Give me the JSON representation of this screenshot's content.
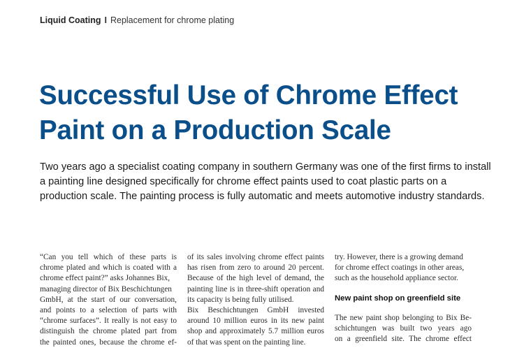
{
  "header": {
    "section": "Liquid Coating",
    "separator": "I",
    "topic": "Replacement for chrome plating"
  },
  "title": {
    "lines": [
      "Successful Use of Chrome Effect",
      "Paint on a Production Scale"
    ]
  },
  "lead": {
    "lines": [
      "Two years ago a specialist coating company in southern Germany was one of the first firms to install",
      "a painting line designed specifically for chrome effect paints used to coat plastic parts on a",
      "production scale. The painting process is fully automatic and meets automotive industry standards."
    ]
  },
  "columns": {
    "col1": [
      "“Can you tell which of these parts is",
      "chrome plated and which is coated with a",
      "chrome effect paint?” asks Johannes Bix,",
      "managing director of Bix Beschichtungen",
      "GmbH, at the start of our conversation,",
      "and points to a selection of parts with",
      "“chrome surfaces”. It really is not easy to",
      "distinguish the chrome plated part from",
      "the painted ones, because the chrome ef-"
    ],
    "col2": [
      "of its sales involving chrome effect paints",
      "has risen from zero to around 20 percent.",
      "Because of the high level of demand, the",
      "painting line is in three-shift operation and",
      "its capacity is being fully utilised.",
      "Bix Beschichtungen GmbH invested",
      "around 10 million euros in its new paint",
      "shop and approximately 5.7 million euros",
      "of that was spent on the painting line."
    ],
    "col3_top": [
      "try. However, there is a growing demand",
      "for chrome effect coatings in other areas,",
      "such as the household appliance sector."
    ],
    "col3_subhead": "New paint shop on greenfield site",
    "col3_bottom": [
      "The new paint shop belonging to Bix Be-",
      "schichtungen was built two years ago",
      "on a greenfield site. The chrome effect"
    ]
  }
}
